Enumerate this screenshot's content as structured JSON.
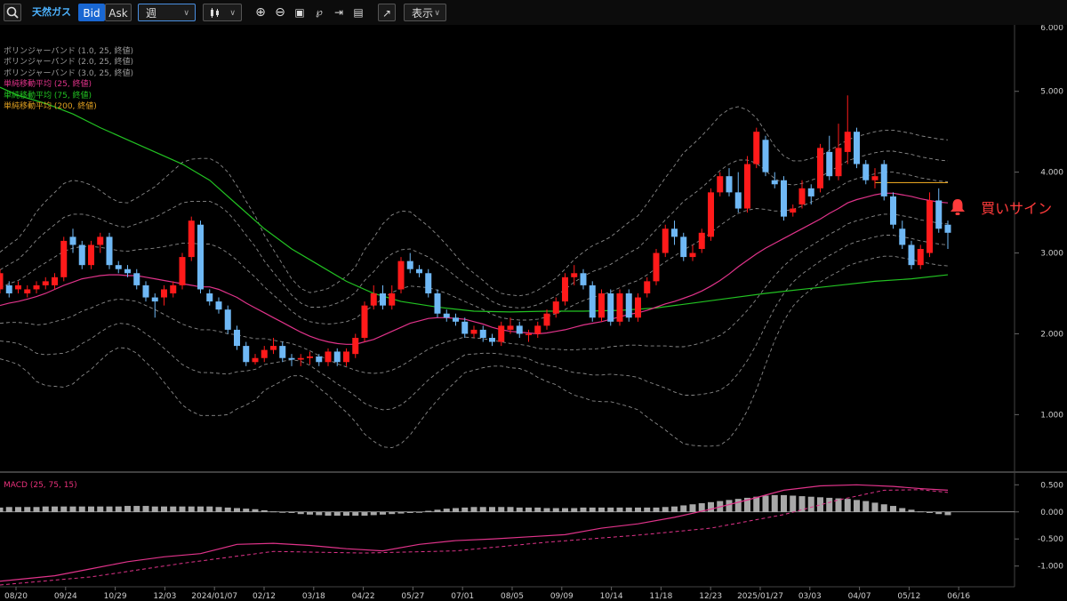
{
  "toolbar": {
    "instrument": "天然ガス",
    "bid": "Bid",
    "ask": "Ask",
    "period": "週",
    "display": "表示"
  },
  "legend": [
    {
      "text": "ボリンジャーバンド (1.0, 25, 終値)",
      "color": "#9a9a9a"
    },
    {
      "text": "ボリンジャーバンド (2.0, 25, 終値)",
      "color": "#9a9a9a"
    },
    {
      "text": "ボリンジャーバンド (3.0, 25, 終値)",
      "color": "#9a9a9a"
    },
    {
      "text": "単純移動平均 (25, 終値)",
      "color": "#e0338a"
    },
    {
      "text": "単純移動平均 (75, 終値)",
      "color": "#22c222"
    },
    {
      "text": "単純移動平均 (200, 終値)",
      "color": "#e0a020"
    }
  ],
  "signal": {
    "text": "買いサイン",
    "color": "#ff3b3b"
  },
  "colors": {
    "up": "#ff1a1a",
    "down": "#6fb8f5",
    "ma25": "#e0338a",
    "ma75": "#22c222",
    "ma200": "#e0a020",
    "band": "#8a8a8a",
    "macd": "#e0338a",
    "histogram": "#a8a8a8",
    "zero_line": "#bbbbbb"
  },
  "chart_data": [
    {
      "type": "candlestick",
      "title": "",
      "x_tick_labels": [
        "08/20",
        "09/24",
        "10/29",
        "12/03",
        "2024/01/07",
        "02/12",
        "03/18",
        "04/22",
        "05/27",
        "07/01",
        "08/05",
        "09/09",
        "10/14",
        "11/18",
        "12/23",
        "2025/01/27",
        "03/03",
        "04/07",
        "05/12",
        "06/16"
      ],
      "y_tick_labels": [
        "1.000",
        "2.000",
        "3.000",
        "4.000",
        "5.000"
      ],
      "ylim": [
        0.3,
        5.8
      ],
      "candles": [
        [
          2.55,
          2.75,
          2.5,
          2.8
        ],
        [
          2.6,
          2.5,
          2.45,
          2.65
        ],
        [
          2.55,
          2.6,
          2.5,
          2.65
        ],
        [
          2.5,
          2.55,
          2.45,
          2.6
        ],
        [
          2.55,
          2.6,
          2.5,
          2.65
        ],
        [
          2.6,
          2.65,
          2.55,
          2.7
        ],
        [
          2.6,
          2.7,
          2.55,
          2.75
        ],
        [
          2.7,
          3.15,
          2.65,
          3.2
        ],
        [
          3.2,
          3.1,
          3.0,
          3.3
        ],
        [
          3.1,
          2.85,
          2.8,
          3.15
        ],
        [
          2.85,
          3.1,
          2.8,
          3.15
        ],
        [
          3.1,
          3.2,
          3.0,
          3.25
        ],
        [
          3.2,
          2.85,
          2.8,
          3.25
        ],
        [
          2.85,
          2.8,
          2.75,
          2.9
        ],
        [
          2.8,
          2.75,
          2.7,
          2.85
        ],
        [
          2.75,
          2.6,
          2.55,
          2.8
        ],
        [
          2.6,
          2.45,
          2.4,
          2.65
        ],
        [
          2.45,
          2.4,
          2.2,
          2.5
        ],
        [
          2.45,
          2.55,
          2.35,
          2.6
        ],
        [
          2.5,
          2.6,
          2.45,
          2.65
        ],
        [
          2.6,
          2.95,
          2.55,
          3.0
        ],
        [
          2.95,
          3.4,
          2.9,
          3.45
        ],
        [
          3.35,
          2.55,
          2.5,
          3.4
        ],
        [
          2.5,
          2.4,
          2.35,
          2.55
        ],
        [
          2.4,
          2.3,
          2.25,
          2.45
        ],
        [
          2.3,
          2.05,
          2.0,
          2.35
        ],
        [
          2.05,
          1.85,
          1.8,
          2.1
        ],
        [
          1.85,
          1.65,
          1.6,
          1.9
        ],
        [
          1.65,
          1.7,
          1.62,
          1.75
        ],
        [
          1.7,
          1.8,
          1.65,
          1.85
        ],
        [
          1.8,
          1.85,
          1.75,
          1.95
        ],
        [
          1.85,
          1.7,
          1.65,
          1.9
        ],
        [
          1.7,
          1.68,
          1.6,
          1.75
        ],
        [
          1.68,
          1.7,
          1.6,
          1.75
        ],
        [
          1.7,
          1.72,
          1.62,
          1.78
        ],
        [
          1.72,
          1.65,
          1.6,
          1.75
        ],
        [
          1.65,
          1.78,
          1.6,
          1.82
        ],
        [
          1.78,
          1.65,
          1.6,
          1.82
        ],
        [
          1.65,
          1.78,
          1.6,
          1.82
        ],
        [
          1.75,
          1.95,
          1.7,
          2.0
        ],
        [
          1.95,
          2.35,
          1.9,
          2.4
        ],
        [
          2.35,
          2.5,
          2.3,
          2.6
        ],
        [
          2.5,
          2.35,
          2.3,
          2.6
        ],
        [
          2.35,
          2.5,
          2.3,
          2.6
        ],
        [
          2.55,
          2.9,
          2.5,
          2.95
        ],
        [
          2.9,
          2.8,
          2.75,
          3.0
        ],
        [
          2.8,
          2.75,
          2.7,
          2.85
        ],
        [
          2.75,
          2.5,
          2.45,
          2.8
        ],
        [
          2.5,
          2.25,
          2.2,
          2.55
        ],
        [
          2.25,
          2.2,
          2.15,
          2.3
        ],
        [
          2.2,
          2.15,
          2.1,
          2.25
        ],
        [
          2.15,
          2.0,
          1.95,
          2.2
        ],
        [
          2.0,
          2.05,
          1.95,
          2.1
        ],
        [
          2.05,
          1.95,
          1.9,
          2.1
        ],
        [
          1.95,
          1.9,
          1.85,
          2.0
        ],
        [
          1.9,
          2.1,
          1.85,
          2.15
        ],
        [
          2.05,
          2.1,
          2.0,
          2.2
        ],
        [
          2.1,
          2.0,
          1.95,
          2.15
        ],
        [
          2.0,
          2.0,
          1.9,
          2.05
        ],
        [
          2.0,
          2.1,
          1.95,
          2.15
        ],
        [
          2.1,
          2.25,
          2.05,
          2.3
        ],
        [
          2.25,
          2.4,
          2.2,
          2.45
        ],
        [
          2.4,
          2.7,
          2.35,
          2.75
        ],
        [
          2.7,
          2.75,
          2.6,
          2.85
        ],
        [
          2.75,
          2.6,
          2.55,
          2.8
        ],
        [
          2.6,
          2.2,
          2.15,
          2.65
        ],
        [
          2.2,
          2.5,
          2.15,
          2.55
        ],
        [
          2.5,
          2.15,
          2.1,
          2.55
        ],
        [
          2.15,
          2.5,
          2.1,
          2.55
        ],
        [
          2.5,
          2.2,
          2.15,
          2.55
        ],
        [
          2.2,
          2.45,
          2.15,
          2.5
        ],
        [
          2.5,
          2.65,
          2.45,
          2.7
        ],
        [
          2.65,
          3.0,
          2.6,
          3.05
        ],
        [
          3.0,
          3.3,
          2.95,
          3.35
        ],
        [
          3.3,
          3.2,
          3.1,
          3.4
        ],
        [
          3.2,
          2.95,
          2.9,
          3.25
        ],
        [
          2.95,
          3.0,
          2.9,
          3.1
        ],
        [
          3.05,
          3.25,
          3.0,
          3.3
        ],
        [
          3.2,
          3.75,
          3.15,
          3.8
        ],
        [
          3.75,
          3.95,
          3.7,
          4.0
        ],
        [
          3.95,
          3.75,
          3.7,
          4.05
        ],
        [
          3.75,
          3.55,
          3.5,
          4.0
        ],
        [
          3.55,
          4.1,
          3.5,
          4.2
        ],
        [
          4.1,
          4.5,
          4.05,
          4.55
        ],
        [
          4.4,
          4.0,
          3.95,
          4.45
        ],
        [
          3.9,
          3.85,
          3.8,
          4.0
        ],
        [
          3.9,
          3.45,
          3.4,
          3.95
        ],
        [
          3.5,
          3.55,
          3.45,
          3.6
        ],
        [
          3.6,
          3.8,
          3.55,
          3.9
        ],
        [
          3.8,
          3.7,
          3.6,
          3.85
        ],
        [
          3.8,
          4.3,
          3.75,
          4.35
        ],
        [
          4.25,
          3.95,
          3.9,
          4.45
        ],
        [
          3.95,
          4.3,
          3.9,
          4.6
        ],
        [
          4.25,
          4.5,
          4.1,
          4.95
        ],
        [
          4.5,
          4.1,
          4.05,
          4.55
        ],
        [
          4.1,
          3.9,
          3.85,
          4.15
        ],
        [
          3.9,
          3.95,
          3.8,
          4.05
        ],
        [
          4.1,
          3.7,
          3.65,
          4.15
        ],
        [
          3.7,
          3.35,
          3.3,
          3.75
        ],
        [
          3.3,
          3.1,
          3.05,
          3.4
        ],
        [
          3.1,
          2.85,
          2.8,
          3.15
        ],
        [
          2.85,
          3.05,
          2.8,
          3.1
        ],
        [
          3.0,
          3.65,
          2.95,
          3.75
        ],
        [
          3.65,
          3.3,
          3.25,
          3.8
        ],
        [
          3.35,
          3.25,
          3.05,
          3.4
        ]
      ],
      "ma25": [
        2.35,
        2.38,
        2.4,
        2.43,
        2.46,
        2.5,
        2.55,
        2.6,
        2.64,
        2.68,
        2.7,
        2.72,
        2.73,
        2.73,
        2.72,
        2.72,
        2.7,
        2.68,
        2.66,
        2.64,
        2.62,
        2.6,
        2.58,
        2.58,
        2.55,
        2.5,
        2.45,
        2.38,
        2.32,
        2.26,
        2.2,
        2.14,
        2.08,
        2.02,
        1.97,
        1.93,
        1.9,
        1.88,
        1.87,
        1.87,
        1.9,
        1.93,
        1.98,
        2.03,
        2.08,
        2.13,
        2.16,
        2.19,
        2.2,
        2.2,
        2.19,
        2.18,
        2.15,
        2.12,
        2.08,
        2.05,
        2.03,
        2.02,
        2.01,
        2.0,
        2.01,
        2.03,
        2.05,
        2.08,
        2.11,
        2.13,
        2.15,
        2.18,
        2.21,
        2.24,
        2.26,
        2.29,
        2.33,
        2.37,
        2.4,
        2.44,
        2.48,
        2.53,
        2.59,
        2.66,
        2.74,
        2.83,
        2.91,
        2.99,
        3.06,
        3.12,
        3.18,
        3.24,
        3.3,
        3.36,
        3.42,
        3.49,
        3.55,
        3.62,
        3.66,
        3.69,
        3.72,
        3.74,
        3.74,
        3.72,
        3.7,
        3.67,
        3.65,
        3.63,
        3.62
      ],
      "ma75_points": [
        [
          0,
          5.05
        ],
        [
          2,
          4.95
        ],
        [
          5,
          4.85
        ],
        [
          8,
          4.72
        ],
        [
          11,
          4.55
        ],
        [
          14,
          4.4
        ],
        [
          17,
          4.25
        ],
        [
          20,
          4.1
        ],
        [
          23,
          3.9
        ],
        [
          26,
          3.6
        ],
        [
          29,
          3.3
        ],
        [
          32,
          3.05
        ],
        [
          35,
          2.85
        ],
        [
          38,
          2.65
        ],
        [
          41,
          2.5
        ],
        [
          44,
          2.4
        ],
        [
          48,
          2.33
        ],
        [
          52,
          2.28
        ],
        [
          56,
          2.27
        ],
        [
          60,
          2.28
        ],
        [
          64,
          2.28
        ],
        [
          68,
          2.29
        ],
        [
          72,
          2.32
        ],
        [
          76,
          2.38
        ],
        [
          80,
          2.44
        ],
        [
          84,
          2.5
        ],
        [
          88,
          2.55
        ],
        [
          92,
          2.6
        ],
        [
          96,
          2.65
        ],
        [
          100,
          2.68
        ],
        [
          104,
          2.73
        ]
      ],
      "ma200_points": [
        [
          96,
          3.87
        ],
        [
          104,
          3.87
        ]
      ],
      "bands": {
        "s1": [
          0.22,
          0.24,
          0.26,
          0.3,
          0.35,
          0.38,
          0.4,
          0.42,
          0.42,
          0.4,
          0.38,
          0.35,
          0.32,
          0.3,
          0.3,
          0.32,
          0.35,
          0.38,
          0.42,
          0.46,
          0.5,
          0.52,
          0.53,
          0.53,
          0.52,
          0.5,
          0.46,
          0.42,
          0.38,
          0.32,
          0.28,
          0.24,
          0.2,
          0.18,
          0.18,
          0.2,
          0.22,
          0.25,
          0.28,
          0.32,
          0.38,
          0.42,
          0.46,
          0.48,
          0.48,
          0.46,
          0.42,
          0.38,
          0.34,
          0.3,
          0.26,
          0.22,
          0.2,
          0.18,
          0.16,
          0.15,
          0.15,
          0.15,
          0.16,
          0.18,
          0.2,
          0.22,
          0.25,
          0.28,
          0.3,
          0.32,
          0.33,
          0.34,
          0.36,
          0.38,
          0.4,
          0.44,
          0.48,
          0.52,
          0.56,
          0.6,
          0.62,
          0.64,
          0.66,
          0.68,
          0.68,
          0.66,
          0.62,
          0.56,
          0.48,
          0.4,
          0.34,
          0.3,
          0.28,
          0.27,
          0.26
        ],
        "note": ""
      }
    },
    {
      "type": "macd",
      "title": "MACD (25, 75, 15)",
      "y_tick_labels": [
        "0.500",
        "0.000",
        "-0.500",
        "-1.000"
      ],
      "ylim": [
        -1.35,
        0.62
      ],
      "histogram": [
        0.08,
        0.09,
        0.09,
        0.09,
        0.09,
        0.1,
        0.1,
        0.1,
        0.1,
        0.1,
        0.1,
        0.1,
        0.1,
        0.1,
        0.11,
        0.11,
        0.11,
        0.1,
        0.1,
        0.1,
        0.1,
        0.1,
        0.1,
        0.1,
        0.09,
        0.08,
        0.07,
        0.06,
        0.05,
        0.03,
        0.01,
        -0.01,
        -0.02,
        -0.04,
        -0.05,
        -0.06,
        -0.07,
        -0.07,
        -0.07,
        -0.07,
        -0.07,
        -0.06,
        -0.05,
        -0.04,
        -0.03,
        -0.02,
        0.0,
        0.02,
        0.04,
        0.06,
        0.07,
        0.08,
        0.09,
        0.09,
        0.09,
        0.09,
        0.09,
        0.08,
        0.08,
        0.08,
        0.07,
        0.07,
        0.07,
        0.07,
        0.08,
        0.08,
        0.08,
        0.08,
        0.08,
        0.08,
        0.08,
        0.08,
        0.08,
        0.09,
        0.1,
        0.12,
        0.14,
        0.16,
        0.18,
        0.2,
        0.22,
        0.24,
        0.26,
        0.28,
        0.3,
        0.31,
        0.31,
        0.3,
        0.29,
        0.28,
        0.27,
        0.26,
        0.25,
        0.24,
        0.22,
        0.2,
        0.17,
        0.14,
        0.11,
        0.07,
        0.04,
        0.01,
        -0.02,
        -0.04,
        -0.06
      ],
      "macd_points": [
        [
          0,
          -1.28
        ],
        [
          6,
          -1.18
        ],
        [
          10,
          -1.05
        ],
        [
          14,
          -0.92
        ],
        [
          18,
          -0.83
        ],
        [
          22,
          -0.77
        ],
        [
          26,
          -0.6
        ],
        [
          30,
          -0.58
        ],
        [
          34,
          -0.62
        ],
        [
          38,
          -0.68
        ],
        [
          42,
          -0.72
        ],
        [
          46,
          -0.6
        ],
        [
          50,
          -0.53
        ],
        [
          54,
          -0.5
        ],
        [
          58,
          -0.46
        ],
        [
          62,
          -0.42
        ],
        [
          66,
          -0.3
        ],
        [
          70,
          -0.22
        ],
        [
          74,
          -0.1
        ],
        [
          78,
          0.05
        ],
        [
          82,
          0.22
        ],
        [
          86,
          0.4
        ],
        [
          90,
          0.48
        ],
        [
          94,
          0.5
        ],
        [
          98,
          0.47
        ],
        [
          101,
          0.43
        ],
        [
          104,
          0.4
        ]
      ],
      "signal_points": [
        [
          0,
          -1.35
        ],
        [
          10,
          -1.2
        ],
        [
          20,
          -0.95
        ],
        [
          30,
          -0.73
        ],
        [
          40,
          -0.76
        ],
        [
          50,
          -0.72
        ],
        [
          60,
          -0.56
        ],
        [
          70,
          -0.43
        ],
        [
          78,
          -0.3
        ],
        [
          86,
          -0.05
        ],
        [
          92,
          0.22
        ],
        [
          97,
          0.4
        ],
        [
          101,
          0.41
        ],
        [
          104,
          0.36
        ]
      ]
    }
  ]
}
